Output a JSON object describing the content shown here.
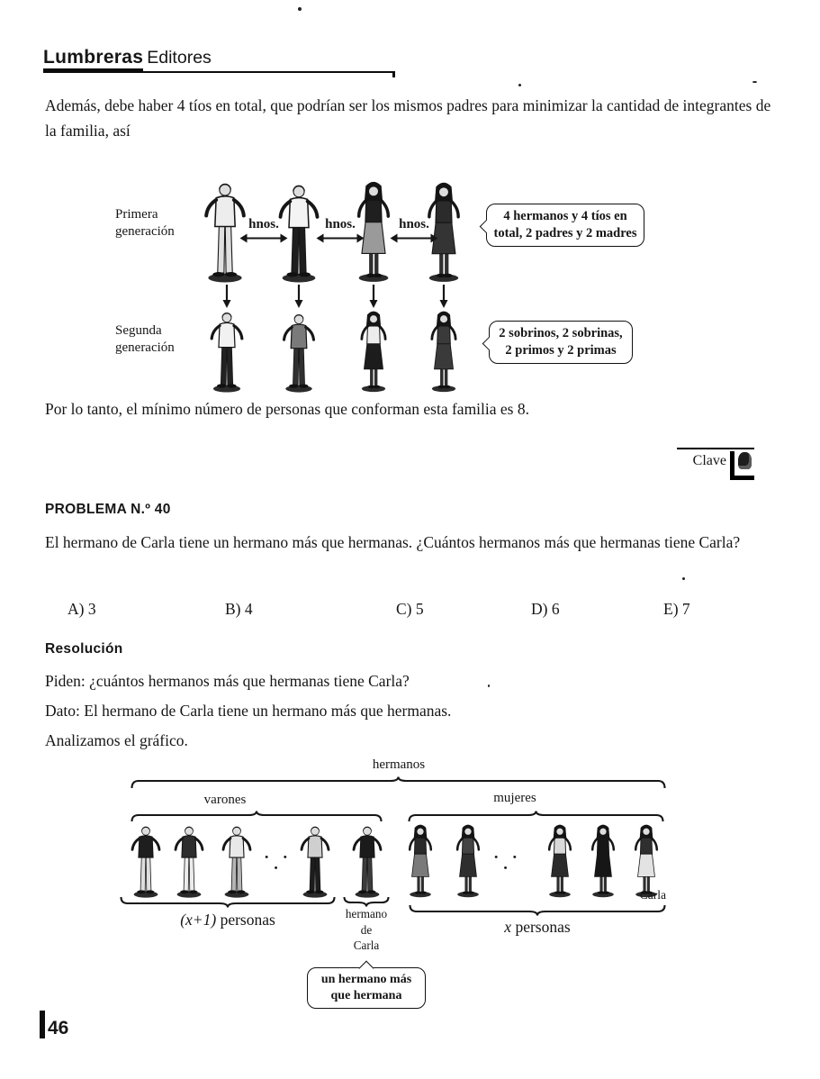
{
  "ink": "#161616",
  "paper": "#ffffff",
  "header": {
    "brand_bold": "Lumbreras",
    "brand_light": "Editores"
  },
  "intro": "Además, debe haber 4 tíos en total, que podrían ser los mismos padres para minimizar la cantidad de integrantes de la familia, así",
  "family_diagram": {
    "gen1_label": "Primera generación",
    "gen2_label": "Segunda generación",
    "siblings_abbr": "hnos.",
    "gen1_bubble": "4 hermanos y 4 tíos en total, 2 padres y 2 madres",
    "gen2_bubble": "2 sobrinos, 2 sobrinas, 2 primos y 2 primas"
  },
  "conclusion": "Por lo tanto, el mínimo número de personas que conforman esta familia es 8.",
  "clave": {
    "label": "Clave"
  },
  "problem": {
    "heading": "PROBLEMA N.º 40",
    "statement": "El hermano de Carla tiene un hermano más que hermanas. ¿Cuántos hermanos más que hermanas tiene Carla?",
    "options": [
      {
        "letter": "A)",
        "value": "3"
      },
      {
        "letter": "B)",
        "value": "4"
      },
      {
        "letter": "C)",
        "value": "5"
      },
      {
        "letter": "D)",
        "value": "6"
      },
      {
        "letter": "E)",
        "value": "7"
      }
    ]
  },
  "resolution": {
    "heading": "Resolución",
    "line1": "Piden: ¿cuántos hermanos más que hermanas tiene Carla?",
    "line2": "Dato: El hermano de Carla tiene un hermano más que hermanas.",
    "line3": "Analizamos el gráfico."
  },
  "carla_diagram": {
    "top_brace_label": "hermanos",
    "left_brace_label": "varones",
    "right_brace_label": "mujeres",
    "ellipsis": "• • •",
    "left_count_math": "(x+1)",
    "left_count_word": "personas",
    "middle_line1": "hermano",
    "middle_line2": "de",
    "middle_line3": "Carla",
    "carla_name": "Carla",
    "right_count_math": "x",
    "right_count_word": "personas",
    "bubble": "un hermano más que hermana"
  },
  "page_number": "46"
}
